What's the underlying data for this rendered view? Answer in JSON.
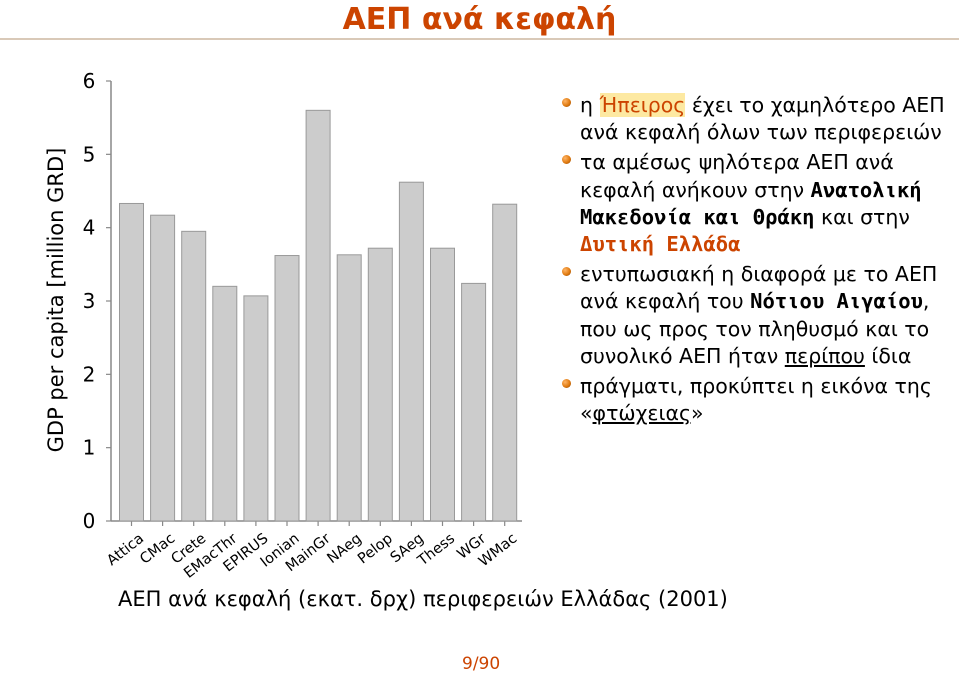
{
  "title": "ΑΕΠ ανά κεφαλή",
  "chart_data": {
    "type": "bar",
    "ylabel": "GDP per capita [million GRD]",
    "ylim": [
      0,
      6
    ],
    "yticks": [
      "0",
      "1",
      "2",
      "3",
      "4",
      "5",
      "6"
    ],
    "categories": [
      "Attica",
      "CMac",
      "Crete",
      "EMacThr",
      "EPIRUS",
      "Ionian",
      "MainGr",
      "NAeg",
      "Pelop",
      "SAeg",
      "Thess",
      "WGr",
      "WMac"
    ],
    "values": [
      4.33,
      4.17,
      3.95,
      3.2,
      3.07,
      3.62,
      5.6,
      3.63,
      3.72,
      4.62,
      3.72,
      3.24,
      4.32
    ],
    "grid": false,
    "bar_color": "#cccccc",
    "bar_edge_color": "#999999"
  },
  "caption": "ΑΕΠ ανά κεφαλή (εκατ. δρχ) περιφερειών Ελλάδας (2001)",
  "bullets": {
    "b1_highlight": "Ήπειρος",
    "b1_pre": "η ",
    "b1_post": " έχει το χαμηλότερο ΑΕΠ ανά κεφαλή όλων των περιφερειών",
    "b2_pre": "τα αμέσως ψηλότερα ΑΕΠ ανά κεφαλή ανήκουν στην ",
    "b2_bold": "Ανατολική Μακεδονία και Θράκη",
    "b2_mid": " και στην ",
    "b2_bold2": "Δυτική Ελλάδα",
    "b3_pre": "εντυπωσιακή η διαφορά με το ΑΕΠ ανά κεφαλή του ",
    "b3_bold": "Νότιου Αιγαίου",
    "b3_mid": ", που ως προς τον πληθυσμό και το συνολικό ΑΕΠ ήταν ",
    "b3_under": "περίπου",
    "b3_post": " ίδια",
    "b4_pre": "πράγματι, προκύπτει η εικόνα της «",
    "b4_under": "φτώχειας",
    "b4_post": "»"
  },
  "page_number": "9/90",
  "colors": {
    "accent": "#cc4400",
    "bullet": "#e07a10"
  }
}
